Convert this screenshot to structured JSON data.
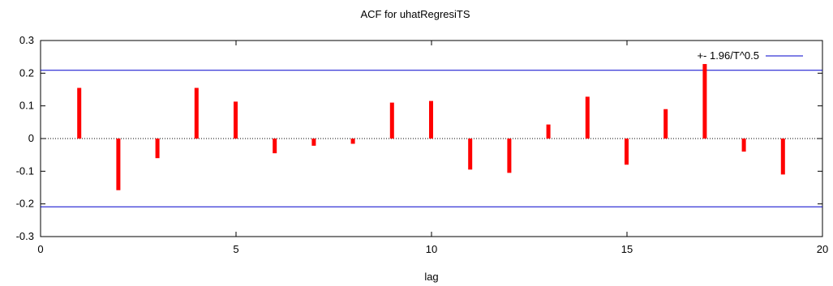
{
  "chart_data": {
    "type": "bar",
    "title": "ACF for uhatRegresiTS",
    "xlabel": "lag",
    "ylabel": "",
    "xlim": [
      0,
      20
    ],
    "ylim": [
      -0.3,
      0.3
    ],
    "x_ticks": [
      0,
      5,
      10,
      15,
      20
    ],
    "x_tick_labels": [
      "0",
      "5",
      "10",
      "15",
      "20"
    ],
    "y_ticks": [
      0.3,
      0.2,
      0.1,
      0,
      -0.1,
      -0.2,
      -0.3
    ],
    "y_tick_labels": [
      "0.3",
      "0.2",
      "0.1",
      "0",
      "-0.1",
      "-0.2",
      "-0.3"
    ],
    "grid": false,
    "lags": [
      1,
      2,
      3,
      4,
      5,
      6,
      7,
      8,
      9,
      10,
      11,
      12,
      13,
      14,
      15,
      16,
      17,
      18,
      19
    ],
    "acf": [
      0.155,
      -0.158,
      -0.06,
      0.155,
      0.113,
      -0.045,
      -0.022,
      -0.016,
      0.11,
      0.115,
      -0.095,
      -0.105,
      0.043,
      0.128,
      -0.08,
      0.09,
      0.228,
      -0.04,
      -0.11
    ],
    "confidence_band": {
      "legend_label": "+- 1.96/T^0.5",
      "value": 0.209
    },
    "legend_position": "top-right",
    "colors": {
      "bars": "#ff0000",
      "band": "#0000cc",
      "zero_line": "#000000"
    }
  }
}
